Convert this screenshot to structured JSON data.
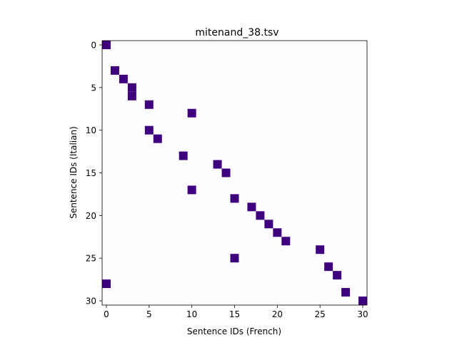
{
  "chart_data": {
    "type": "heatmap",
    "title": "mitenand_38.tsv",
    "xlabel": "Sentence IDs (French)",
    "ylabel": "Sentence IDs (Italian)",
    "xlim": [
      -0.5,
      30.5
    ],
    "ylim": [
      30.5,
      -0.5
    ],
    "xticks": [
      0,
      5,
      10,
      15,
      20,
      25,
      30
    ],
    "yticks": [
      0,
      5,
      10,
      15,
      20,
      25,
      30
    ],
    "grid": false,
    "colors": {
      "background": "#fcfbfd",
      "filled": "#3f007d"
    },
    "cells": [
      {
        "x": 0,
        "y": 0
      },
      {
        "x": 1,
        "y": 3
      },
      {
        "x": 2,
        "y": 4
      },
      {
        "x": 3,
        "y": 5
      },
      {
        "x": 3,
        "y": 6
      },
      {
        "x": 5,
        "y": 7
      },
      {
        "x": 10,
        "y": 8
      },
      {
        "x": 5,
        "y": 10
      },
      {
        "x": 6,
        "y": 11
      },
      {
        "x": 9,
        "y": 13
      },
      {
        "x": 13,
        "y": 14
      },
      {
        "x": 14,
        "y": 15
      },
      {
        "x": 10,
        "y": 17
      },
      {
        "x": 15,
        "y": 18
      },
      {
        "x": 17,
        "y": 19
      },
      {
        "x": 18,
        "y": 20
      },
      {
        "x": 19,
        "y": 21
      },
      {
        "x": 20,
        "y": 22
      },
      {
        "x": 21,
        "y": 23
      },
      {
        "x": 25,
        "y": 24
      },
      {
        "x": 15,
        "y": 25
      },
      {
        "x": 26,
        "y": 26
      },
      {
        "x": 27,
        "y": 27
      },
      {
        "x": 0,
        "y": 28
      },
      {
        "x": 28,
        "y": 29
      },
      {
        "x": 30,
        "y": 30
      }
    ]
  }
}
